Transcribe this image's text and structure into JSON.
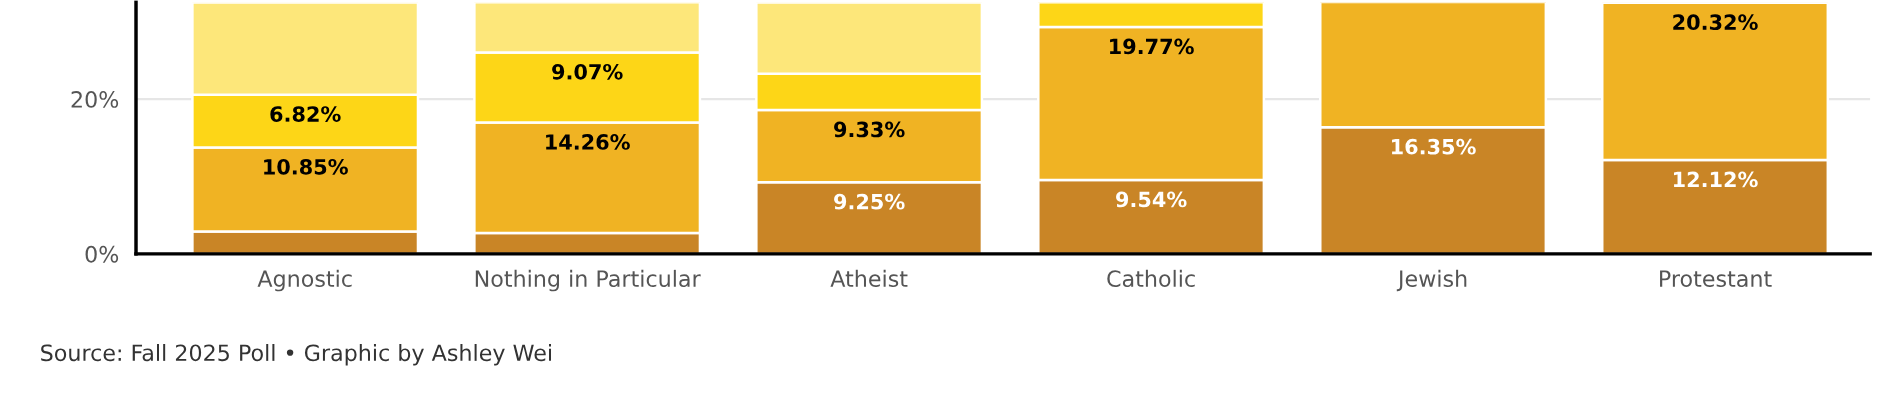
{
  "chart_data": {
    "type": "bar",
    "stacked": true,
    "categories": [
      "Agnostic",
      "Nothing in Particular",
      "Atheist",
      "Catholic",
      "Jewish",
      "Protestant"
    ],
    "series": [
      {
        "color": "#c98526",
        "values": [
          2.9,
          2.7,
          9.25,
          9.54,
          16.35,
          12.12
        ],
        "value_labels": [
          null,
          null,
          "9.25%",
          "9.54%",
          "16.35%",
          "12.12%"
        ]
      },
      {
        "color": "#f0b323",
        "values": [
          10.85,
          14.26,
          9.33,
          19.77,
          16.2,
          20.32
        ],
        "value_labels": [
          "10.85%",
          "14.26%",
          "9.33%",
          "19.77%",
          null,
          "20.32%"
        ]
      },
      {
        "color": "#fdd617",
        "values": [
          6.82,
          9.07,
          4.7,
          3.2,
          null,
          null
        ],
        "value_labels": [
          "6.82%",
          "9.07%",
          null,
          null,
          null,
          null
        ]
      },
      {
        "color": "#fde77a",
        "values": [
          11.9,
          6.5,
          9.2,
          null,
          null,
          null
        ]
      }
    ],
    "ylim": [
      0,
      32.5
    ],
    "yticks": [
      {
        "value": 0,
        "label": "0%"
      },
      {
        "value": 20,
        "label": "20%"
      }
    ],
    "grid": "y",
    "annotations": [
      "Source: Fall 2025 Poll • Graphic by Ashley Wei"
    ]
  }
}
